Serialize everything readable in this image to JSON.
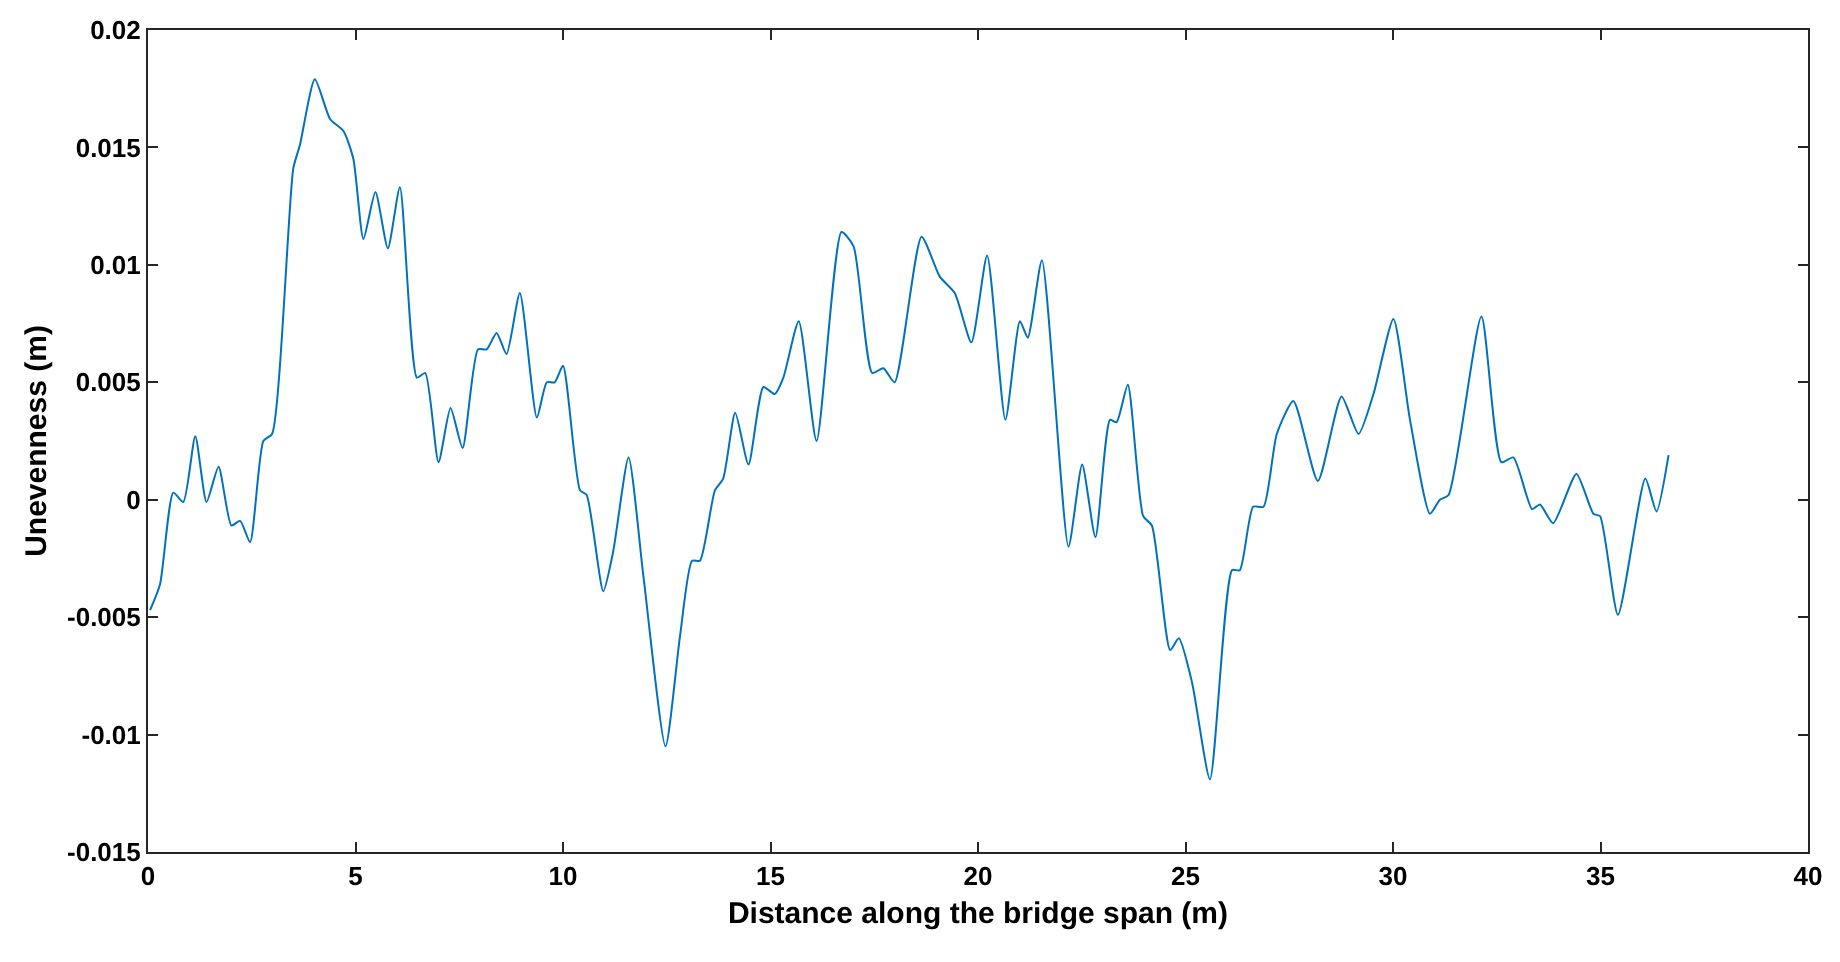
{
  "chart_data": {
    "type": "line",
    "xlabel": "Distance along the bridge span (m)",
    "ylabel": "Unevenness (m)",
    "xlim": [
      0,
      40
    ],
    "xticks": [
      0,
      5,
      10,
      15,
      20,
      25,
      30,
      35,
      40
    ],
    "ylim": [
      -0.015,
      0.02
    ],
    "yticks": [
      -0.015,
      -0.01,
      -0.005,
      0,
      0.005,
      0.01,
      0.015,
      0.02
    ],
    "grid": false,
    "marker": "none",
    "line_style": "solid",
    "x": [
      0.05,
      0.29,
      0.61,
      0.85,
      1.14,
      1.41,
      1.7,
      2.01,
      2.22,
      2.46,
      2.78,
      2.99,
      3.5,
      3.66,
      4.02,
      4.39,
      4.71,
      4.95,
      5.19,
      5.48,
      5.78,
      6.07,
      6.48,
      6.68,
      7.0,
      7.29,
      7.58,
      7.95,
      8.16,
      8.4,
      8.64,
      8.96,
      9.37,
      9.61,
      9.8,
      10.0,
      10.41,
      10.57,
      10.97,
      11.21,
      11.58,
      11.94,
      12.47,
      12.82,
      13.11,
      13.3,
      13.66,
      13.86,
      14.15,
      14.47,
      14.83,
      15.1,
      15.31,
      15.68,
      16.11,
      16.71,
      17.0,
      17.45,
      17.72,
      17.99,
      18.64,
      19.08,
      19.44,
      19.84,
      20.22,
      20.66,
      21.01,
      21.2,
      21.54,
      22.18,
      22.51,
      22.83,
      23.18,
      23.34,
      23.61,
      23.98,
      24.19,
      24.63,
      24.84,
      25.16,
      25.59,
      26.12,
      26.31,
      26.63,
      26.88,
      27.2,
      27.6,
      28.19,
      28.76,
      29.17,
      29.53,
      30.01,
      30.41,
      30.89,
      31.13,
      31.34,
      32.13,
      32.61,
      32.9,
      33.35,
      33.54,
      33.86,
      34.42,
      34.83,
      34.99,
      35.42,
      36.08,
      36.35,
      36.64
    ],
    "series": [
      {
        "color": "#0072bd",
        "values": [
          -0.0047,
          -0.0036,
          0.0003,
          -0.0001,
          0.0027,
          -0.0001,
          0.0014,
          -0.0011,
          -0.0009,
          -0.0018,
          0.0025,
          0.0028,
          0.0141,
          0.0151,
          0.0179,
          0.0162,
          0.0157,
          0.0145,
          0.0111,
          0.0131,
          0.0107,
          0.0133,
          0.0052,
          0.0054,
          0.0016,
          0.0039,
          0.0022,
          0.0064,
          0.0064,
          0.0071,
          0.0062,
          0.0088,
          0.0035,
          0.005,
          0.005,
          0.0057,
          0.0004,
          0.0002,
          -0.0039,
          -0.0022,
          0.0018,
          -0.0033,
          -0.0105,
          -0.0058,
          -0.0026,
          -0.0026,
          0.0004,
          0.0009,
          0.0037,
          0.0015,
          0.0048,
          0.0045,
          0.0052,
          0.0076,
          0.0025,
          0.0114,
          0.0108,
          0.0054,
          0.0056,
          0.005,
          0.0112,
          0.0095,
          0.0088,
          0.0067,
          0.0104,
          0.0034,
          0.0076,
          0.0069,
          0.0102,
          -0.002,
          0.0015,
          -0.0016,
          0.0034,
          0.0033,
          0.0049,
          -0.0007,
          -0.0011,
          -0.0064,
          -0.0059,
          -0.0078,
          -0.0119,
          -0.003,
          -0.003,
          -0.0003,
          -0.0003,
          0.0028,
          0.0042,
          0.0008,
          0.0044,
          0.0028,
          0.0045,
          0.0077,
          0.0034,
          -0.0006,
          0,
          0.0002,
          0.0078,
          0.0016,
          0.0018,
          -0.0004,
          -0.0002,
          -0.001,
          0.0011,
          -0.0006,
          -0.0007,
          -0.0049,
          0.0009,
          -0.0005,
          0.0019
        ]
      }
    ]
  }
}
